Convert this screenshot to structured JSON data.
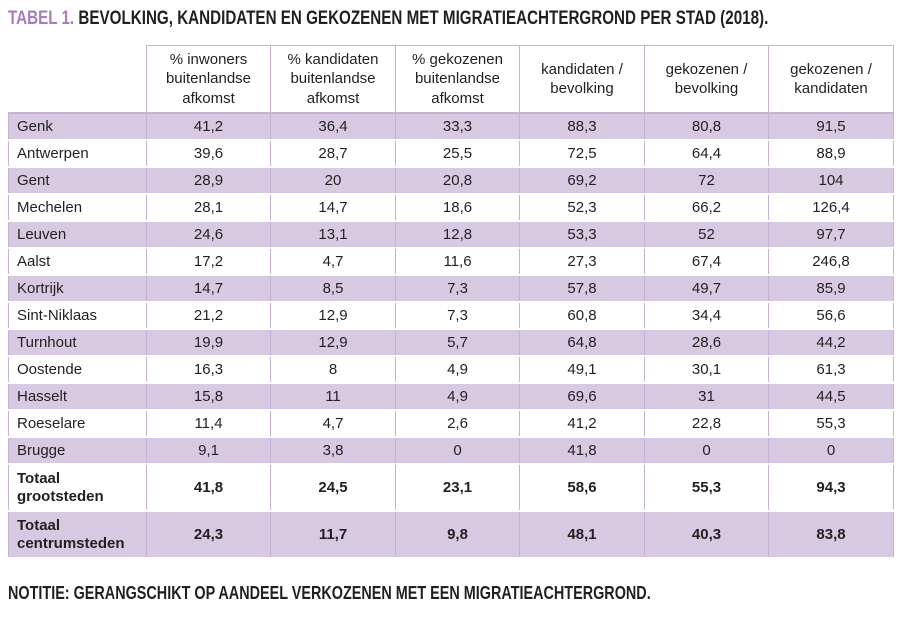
{
  "title": {
    "prefix": "TABEL 1.",
    "text": "BEVOLKING, KANDIDATEN EN GEKOZENEN MET MIGRATIEACHTERGROND PER STAD (2018)."
  },
  "note": "NOTITIE: GERANGSCHIKT OP AANDEEL VERKOZENEN MET EEN MIGRATIEACHTERGROND.",
  "colors": {
    "accent_purple": "#a87cbd",
    "row_shaded": "#d7c9e1",
    "grid_border": "#c6b0d4",
    "text_dark": "#231f20"
  },
  "chart_data": {
    "type": "table",
    "title": "TABEL 1. BEVOLKING, KANDIDATEN EN GEKOZENEN MET MIGRATIEACHTERGROND PER STAD (2018)."
  },
  "table": {
    "columns": [
      "% inwoners buitenlandse afkomst",
      "% kandidaten buitenlandse afkomst",
      "% gekozenen buitenlandse afkomst",
      "kandidaten / bevolking",
      "gekozenen / bevolking",
      "gekozenen / kandidaten"
    ],
    "rows": [
      {
        "name": "Genk",
        "values": [
          "41,2",
          "36,4",
          "33,3",
          "88,3",
          "80,8",
          "91,5"
        ],
        "shaded": true,
        "bold": false
      },
      {
        "name": "Antwerpen",
        "values": [
          "39,6",
          "28,7",
          "25,5",
          "72,5",
          "64,4",
          "88,9"
        ],
        "shaded": false,
        "bold": false
      },
      {
        "name": "Gent",
        "values": [
          "28,9",
          "20",
          "20,8",
          "69,2",
          "72",
          "104"
        ],
        "shaded": true,
        "bold": false
      },
      {
        "name": "Mechelen",
        "values": [
          "28,1",
          "14,7",
          "18,6",
          "52,3",
          "66,2",
          "126,4"
        ],
        "shaded": false,
        "bold": false
      },
      {
        "name": "Leuven",
        "values": [
          "24,6",
          "13,1",
          "12,8",
          "53,3",
          "52",
          "97,7"
        ],
        "shaded": true,
        "bold": false
      },
      {
        "name": "Aalst",
        "values": [
          "17,2",
          "4,7",
          "11,6",
          "27,3",
          "67,4",
          "246,8"
        ],
        "shaded": false,
        "bold": false
      },
      {
        "name": "Kortrijk",
        "values": [
          "14,7",
          "8,5",
          "7,3",
          "57,8",
          "49,7",
          "85,9"
        ],
        "shaded": true,
        "bold": false
      },
      {
        "name": "Sint-Niklaas",
        "values": [
          "21,2",
          "12,9",
          "7,3",
          "60,8",
          "34,4",
          "56,6"
        ],
        "shaded": false,
        "bold": false
      },
      {
        "name": "Turnhout",
        "values": [
          "19,9",
          "12,9",
          "5,7",
          "64,8",
          "28,6",
          "44,2"
        ],
        "shaded": true,
        "bold": false
      },
      {
        "name": "Oostende",
        "values": [
          "16,3",
          "8",
          "4,9",
          "49,1",
          "30,1",
          "61,3"
        ],
        "shaded": false,
        "bold": false
      },
      {
        "name": "Hasselt",
        "values": [
          "15,8",
          "11",
          "4,9",
          "69,6",
          "31",
          "44,5"
        ],
        "shaded": true,
        "bold": false
      },
      {
        "name": "Roeselare",
        "values": [
          "11,4",
          "4,7",
          "2,6",
          "41,2",
          "22,8",
          "55,3"
        ],
        "shaded": false,
        "bold": false
      },
      {
        "name": "Brugge",
        "values": [
          "9,1",
          "3,8",
          "0",
          "41,8",
          "0",
          "0"
        ],
        "shaded": true,
        "bold": false
      },
      {
        "name": "Totaal grootsteden",
        "values": [
          "41,8",
          "24,5",
          "23,1",
          "58,6",
          "55,3",
          "94,3"
        ],
        "shaded": false,
        "bold": true
      },
      {
        "name": "Totaal centrumsteden",
        "values": [
          "24,3",
          "11,7",
          "9,8",
          "48,1",
          "40,3",
          "83,8"
        ],
        "shaded": true,
        "bold": true
      }
    ]
  }
}
